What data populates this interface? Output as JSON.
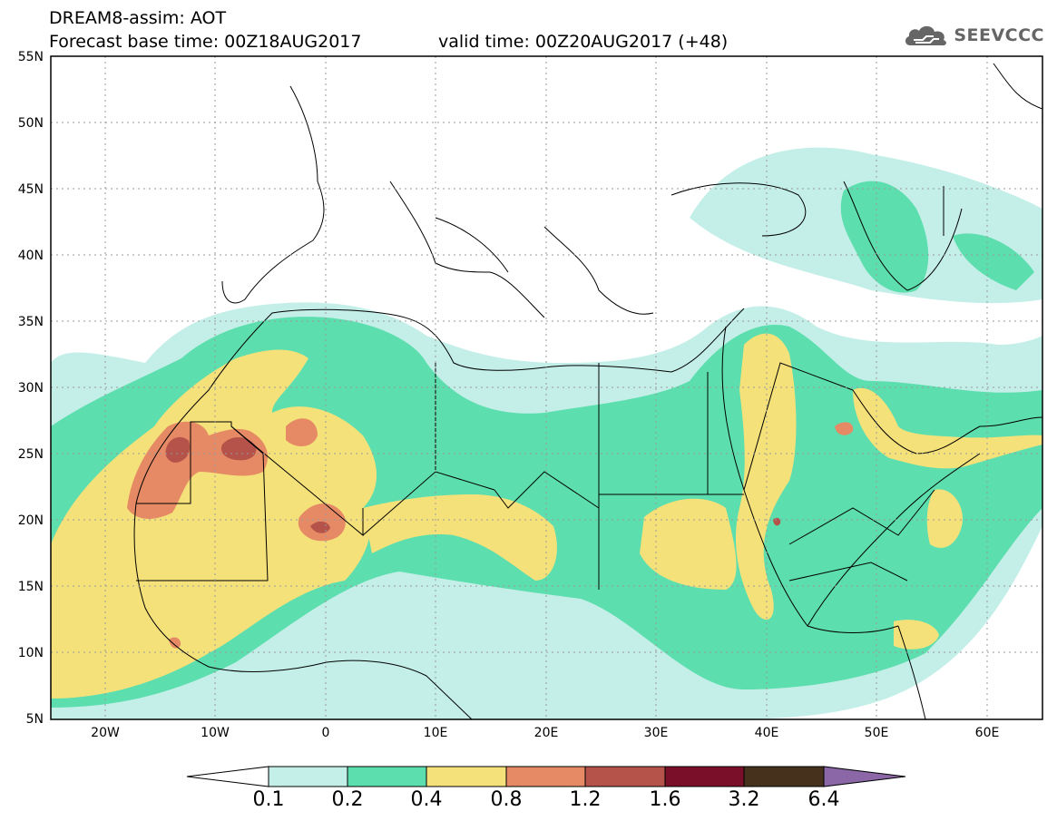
{
  "header": {
    "title_line1": "DREAM8-assim: AOT",
    "forecast_base": "Forecast base time: 00Z18AUG2017",
    "valid_time": "valid time: 00Z20AUG2017 (+48)"
  },
  "logo": {
    "text": "SEEVCCC",
    "icon": "cloud-icon"
  },
  "axes": {
    "lat_labels": [
      "55N",
      "50N",
      "45N",
      "40N",
      "35N",
      "30N",
      "25N",
      "20N",
      "15N",
      "10N",
      "5N"
    ],
    "lon_labels": [
      "20W",
      "10W",
      "0",
      "10E",
      "20E",
      "30E",
      "40E",
      "50E",
      "60E"
    ]
  },
  "colorbar": {
    "labels": [
      "0.1",
      "0.2",
      "0.4",
      "0.8",
      "1.2",
      "1.6",
      "3.2",
      "6.4"
    ],
    "colors": [
      "#ffffff",
      "#c4efe8",
      "#5ddeae",
      "#f5e17a",
      "#e58a65",
      "#b5524a",
      "#7a0f2a",
      "#45311c",
      "#8b67a8"
    ]
  },
  "palette": {
    "aot_0_1": "#c4efe8",
    "aot_0_2": "#5ddeae",
    "aot_0_4": "#f5e17a",
    "aot_0_8": "#e58a65",
    "aot_1_2": "#b5524a"
  }
}
